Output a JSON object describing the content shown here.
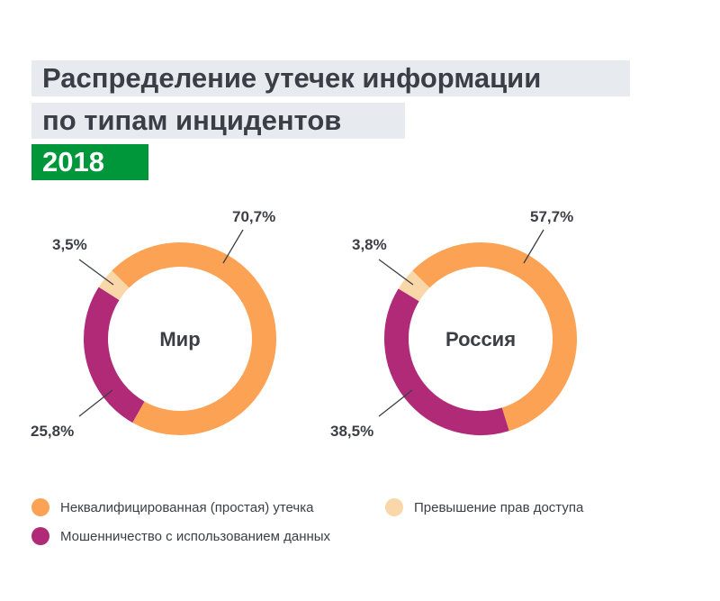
{
  "title_line1": "Распределение утечек информации",
  "title_line2": "по типам инцидентов",
  "year": "2018",
  "colors": {
    "simple": "#fba254",
    "fraud": "#b02a77",
    "access": "#fad7a8",
    "green": "#00973a"
  },
  "chart_data": [
    {
      "type": "pie",
      "title": "Мир",
      "categories": [
        "Неквалифицированная (простая) утечка",
        "Мошенничество с использованием данных",
        "Превышение прав доступа"
      ],
      "values": [
        70.7,
        25.8,
        3.5
      ],
      "labels": [
        "70,7%",
        "25,8%",
        "3,5%"
      ]
    },
    {
      "type": "pie",
      "title": "Россия",
      "categories": [
        "Неквалифицированная (простая) утечка",
        "Мошенничество с использованием данных",
        "Превышение прав доступа"
      ],
      "values": [
        57.7,
        38.5,
        3.8
      ],
      "labels": [
        "57,7%",
        "38,5%",
        "3,8%"
      ]
    }
  ],
  "legend": [
    {
      "label": "Неквалифицированная (простая) утечка",
      "key": "simple"
    },
    {
      "label": "Мошенничество с использованием данных",
      "key": "fraud"
    },
    {
      "label": "Превышение прав доступа",
      "key": "access"
    }
  ]
}
